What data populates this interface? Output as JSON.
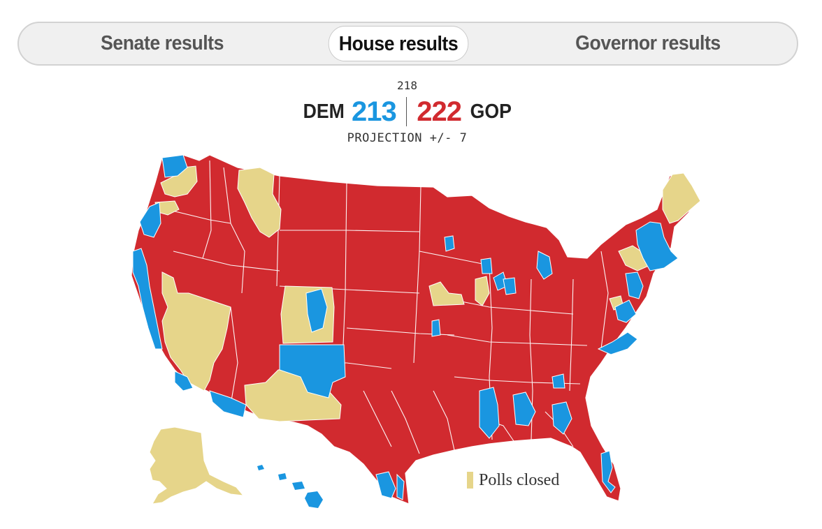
{
  "tabs": [
    {
      "label": "Senate results",
      "active": false
    },
    {
      "label": "House results",
      "active": true
    },
    {
      "label": "Governor results",
      "active": false
    }
  ],
  "scoreboard": {
    "majority_threshold": "218",
    "dem_label": "DEM",
    "dem_seats": "213",
    "gop_seats": "222",
    "gop_label": "GOP",
    "projection": "PROJECTION +/- 7"
  },
  "legend": {
    "polls_closed_label": "Polls closed"
  },
  "colors": {
    "dem": "#1a96e0",
    "gop": "#d12a2f",
    "polls_closed": "#e6d58a",
    "district_border": "#ffffff"
  },
  "map": {
    "type": "US House district results map",
    "regions_shown": [
      "contiguous United States",
      "Alaska",
      "Hawaii"
    ]
  }
}
